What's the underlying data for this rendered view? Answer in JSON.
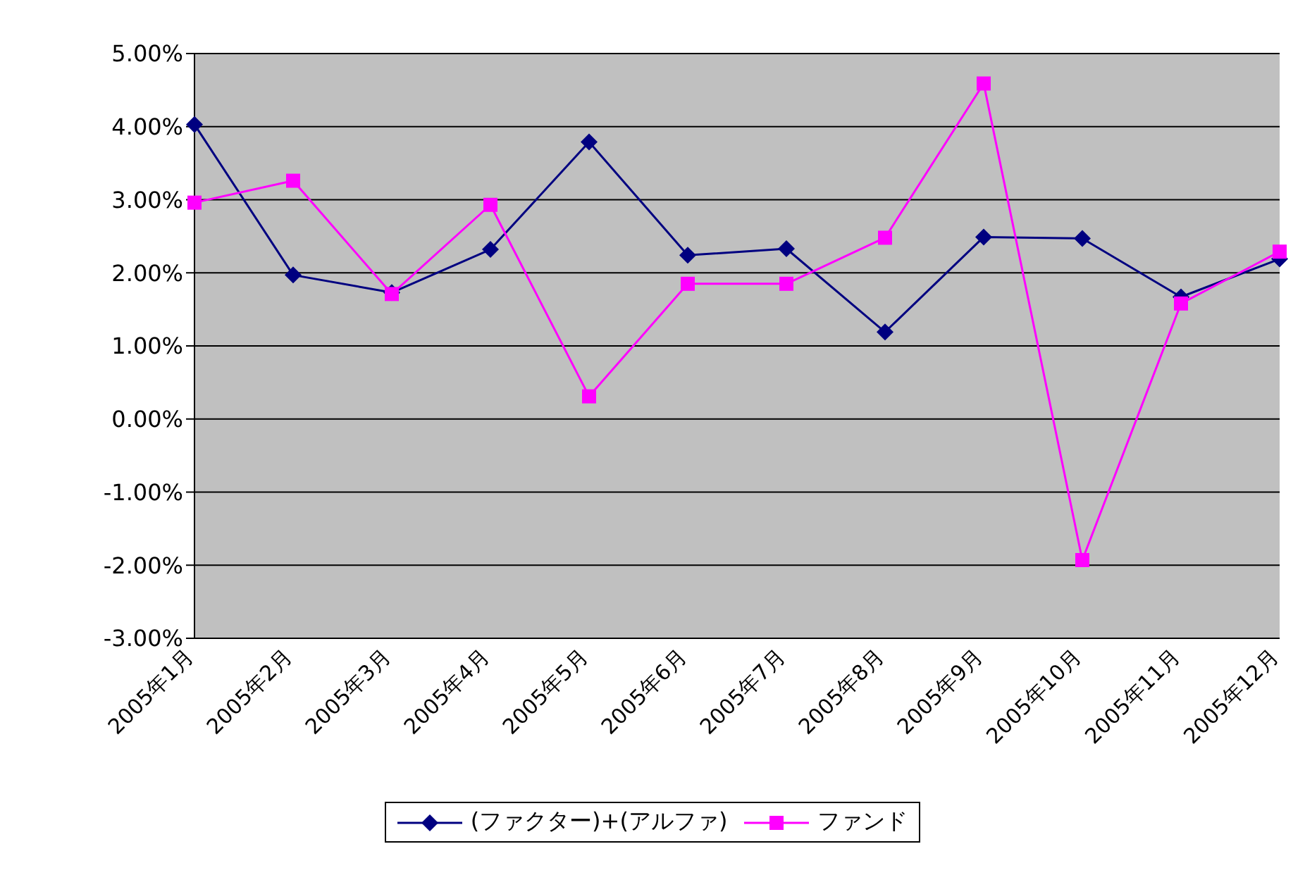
{
  "chart_data": {
    "type": "line",
    "categories": [
      "2005年1月",
      "2005年2月",
      "2005年3月",
      "2005年4月",
      "2005年5月",
      "2005年6月",
      "2005年7月",
      "2005年8月",
      "2005年9月",
      "2005年10月",
      "2005年11月",
      "2005年12月"
    ],
    "series": [
      {
        "name": "(ファクター)+(アルファ)",
        "color": "#000080",
        "marker": "diamond",
        "values": [
          4.03,
          1.97,
          1.73,
          2.32,
          3.79,
          2.24,
          2.33,
          1.19,
          2.49,
          2.47,
          1.67,
          2.19
        ]
      },
      {
        "name": "ファンド",
        "color": "#ff00ff",
        "marker": "square",
        "values": [
          2.96,
          3.26,
          1.71,
          2.93,
          0.31,
          1.85,
          1.85,
          2.48,
          4.59,
          -1.93,
          1.58,
          2.29
        ]
      }
    ],
    "ylim": [
      -3,
      5
    ],
    "yticks": [
      {
        "value": -3,
        "label": "-3.00%"
      },
      {
        "value": -2,
        "label": "-2.00%"
      },
      {
        "value": -1,
        "label": "-1.00%"
      },
      {
        "value": 0,
        "label": "0.00%"
      },
      {
        "value": 1,
        "label": "1.00%"
      },
      {
        "value": 2,
        "label": "2.00%"
      },
      {
        "value": 3,
        "label": "3.00%"
      },
      {
        "value": 4,
        "label": "4.00%"
      },
      {
        "value": 5,
        "label": "5.00%"
      }
    ],
    "grid": "y",
    "legend": "bottom",
    "line_style": "solid"
  }
}
